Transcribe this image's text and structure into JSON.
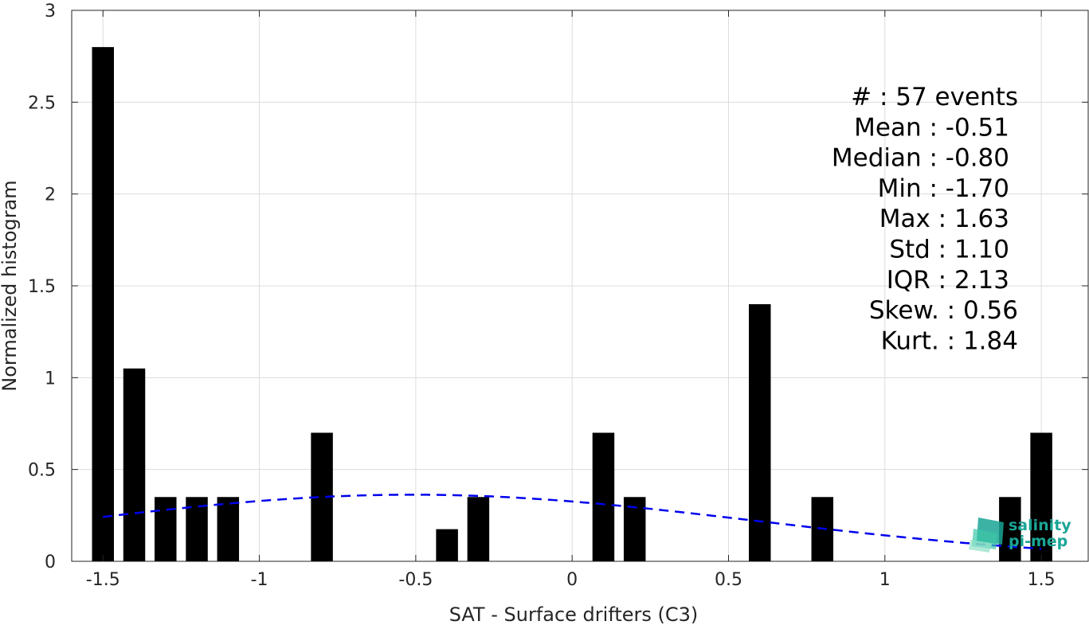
{
  "chart_data": {
    "type": "bar",
    "xlabel": "SAT - Surface drifters (C3)",
    "ylabel": "Normalized histogram",
    "xlim": [
      -1.6,
      1.65
    ],
    "ylim": [
      0,
      3
    ],
    "grid": true,
    "xticks": [
      -1.5,
      -1,
      -0.5,
      0,
      0.5,
      1,
      1.5
    ],
    "xtick_labels": [
      "-1.5",
      "-1",
      "-0.5",
      "0",
      "0.5",
      "1",
      "1.5"
    ],
    "yticks": [
      0,
      0.5,
      1,
      1.5,
      2,
      2.5,
      3
    ],
    "ytick_labels": [
      "0",
      "0.5",
      "1",
      "1.5",
      "2",
      "2.5",
      "3"
    ],
    "bar_width": 0.07,
    "bar_color": "#000000",
    "bars": [
      {
        "x": -1.5,
        "value": 2.8
      },
      {
        "x": -1.4,
        "value": 1.05
      },
      {
        "x": -1.3,
        "value": 0.35
      },
      {
        "x": -1.2,
        "value": 0.35
      },
      {
        "x": -1.1,
        "value": 0.35
      },
      {
        "x": -0.8,
        "value": 0.7
      },
      {
        "x": -0.4,
        "value": 0.175
      },
      {
        "x": -0.3,
        "value": 0.35
      },
      {
        "x": 0.1,
        "value": 0.7
      },
      {
        "x": 0.2,
        "value": 0.35
      },
      {
        "x": 0.6,
        "value": 1.4
      },
      {
        "x": 0.8,
        "value": 0.35
      },
      {
        "x": 1.4,
        "value": 0.35
      },
      {
        "x": 1.5,
        "value": 0.7
      }
    ],
    "fit_curve": {
      "style": "dashed",
      "color": "#0000ee",
      "mean": -0.51,
      "std": 1.1,
      "x_range": [
        -1.5,
        1.5
      ]
    },
    "annotations": [
      "#  : 57 events",
      "Mean : -0.51",
      "Median : -0.80",
      "Min : -1.70",
      "Max : 1.63",
      "Std : 1.10",
      "IQR : 2.13",
      "Skew. : 0.56",
      "Kurt. : 1.84"
    ]
  },
  "logo": {
    "line1": "salinity",
    "line2": "pi-mep",
    "color": "#1aa595"
  }
}
